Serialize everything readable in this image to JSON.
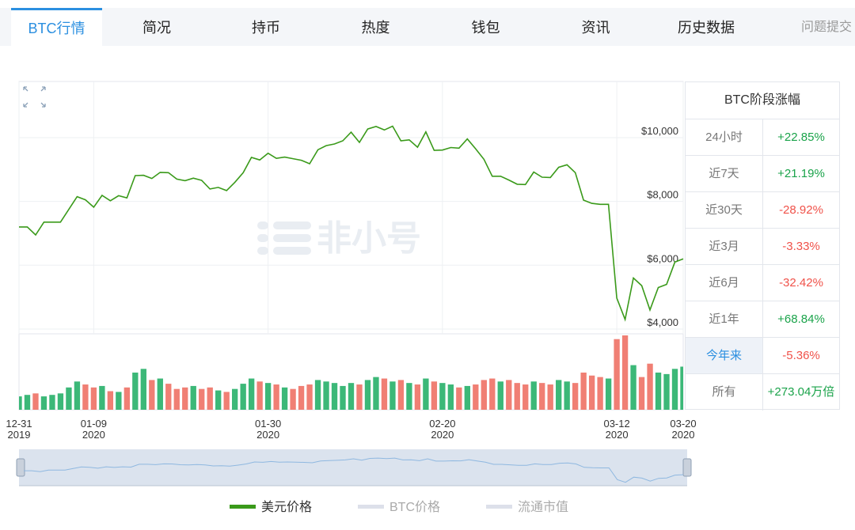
{
  "tabs": {
    "items": [
      "BTC行情",
      "简况",
      "持币",
      "热度",
      "钱包",
      "资讯",
      "历史数据"
    ],
    "active": 0,
    "feedback": "问题提交"
  },
  "chart_data": {
    "type": "line",
    "watermark": "非小号",
    "x": [
      "2019-12-31",
      "2020-01-01",
      "2020-01-02",
      "2020-01-03",
      "2020-01-04",
      "2020-01-05",
      "2020-01-06",
      "2020-01-07",
      "2020-01-08",
      "2020-01-09",
      "2020-01-10",
      "2020-01-11",
      "2020-01-12",
      "2020-01-13",
      "2020-01-14",
      "2020-01-15",
      "2020-01-16",
      "2020-01-17",
      "2020-01-18",
      "2020-01-19",
      "2020-01-20",
      "2020-01-21",
      "2020-01-22",
      "2020-01-23",
      "2020-01-24",
      "2020-01-25",
      "2020-01-26",
      "2020-01-27",
      "2020-01-28",
      "2020-01-29",
      "2020-01-30",
      "2020-01-31",
      "2020-02-01",
      "2020-02-02",
      "2020-02-03",
      "2020-02-04",
      "2020-02-05",
      "2020-02-06",
      "2020-02-07",
      "2020-02-08",
      "2020-02-09",
      "2020-02-10",
      "2020-02-11",
      "2020-02-12",
      "2020-02-13",
      "2020-02-14",
      "2020-02-15",
      "2020-02-16",
      "2020-02-17",
      "2020-02-18",
      "2020-02-19",
      "2020-02-20",
      "2020-02-21",
      "2020-02-22",
      "2020-02-23",
      "2020-02-24",
      "2020-02-25",
      "2020-02-26",
      "2020-02-27",
      "2020-02-28",
      "2020-02-29",
      "2020-03-01",
      "2020-03-02",
      "2020-03-03",
      "2020-03-04",
      "2020-03-05",
      "2020-03-06",
      "2020-03-07",
      "2020-03-08",
      "2020-03-09",
      "2020-03-10",
      "2020-03-11",
      "2020-03-12",
      "2020-03-13",
      "2020-03-14",
      "2020-03-15",
      "2020-03-16",
      "2020-03-17",
      "2020-03-18",
      "2020-03-19",
      "2020-03-20"
    ],
    "series": [
      {
        "name": "美元价格",
        "color": "#3a9a1a",
        "values": [
          7200,
          7200,
          6950,
          7350,
          7350,
          7350,
          7750,
          8150,
          8050,
          7820,
          8190,
          8020,
          8180,
          8110,
          8810,
          8820,
          8720,
          8910,
          8900,
          8700,
          8650,
          8730,
          8660,
          8390,
          8440,
          8340,
          8600,
          8900,
          9380,
          9300,
          9510,
          9350,
          9390,
          9340,
          9290,
          9180,
          9620,
          9750,
          9800,
          9900,
          10170,
          9850,
          10270,
          10350,
          10240,
          10360,
          9900,
          9930,
          9700,
          10180,
          9600,
          9610,
          9690,
          9670,
          9960,
          9650,
          9320,
          8790,
          8790,
          8670,
          8540,
          8530,
          8920,
          8760,
          8750,
          9070,
          9150,
          8900,
          8040,
          7940,
          7910,
          7910,
          4970,
          4300,
          5600,
          5360,
          4600,
          5300,
          5400,
          6100,
          6200
        ]
      }
    ],
    "inactive_series": [
      {
        "name": "BTC价格",
        "color": "#dde0ea"
      },
      {
        "name": "流通市值",
        "color": "#dde0ea"
      }
    ],
    "volume": [
      18,
      20,
      22,
      18,
      20,
      22,
      30,
      38,
      34,
      30,
      32,
      25,
      24,
      30,
      50,
      55,
      40,
      42,
      35,
      28,
      30,
      32,
      28,
      30,
      26,
      24,
      28,
      35,
      42,
      38,
      36,
      34,
      30,
      28,
      32,
      34,
      40,
      38,
      36,
      32,
      36,
      34,
      40,
      44,
      42,
      38,
      40,
      36,
      34,
      42,
      38,
      36,
      34,
      30,
      32,
      34,
      40,
      42,
      38,
      40,
      36,
      34,
      38,
      36,
      34,
      40,
      38,
      36,
      50,
      46,
      44,
      42,
      95,
      100,
      60,
      44,
      62,
      50,
      48,
      55,
      58
    ],
    "volume_ylim": [
      0,
      100
    ],
    "volume_up_color": "#3cb878",
    "volume_down_color": "#f07f74",
    "ylim": [
      3850,
      11760
    ],
    "yticks": [
      {
        "value": 4000,
        "label": "$4,000"
      },
      {
        "value": 6000,
        "label": "$6,000"
      },
      {
        "value": 8000,
        "label": "$8,000"
      },
      {
        "value": 10000,
        "label": "$10,000"
      }
    ],
    "xlim": [
      "2019-12-31",
      "2020-03-20"
    ],
    "xticks": [
      {
        "value": "2019-12-31",
        "label": "12-31\n2019"
      },
      {
        "value": "2020-01-09",
        "label": "01-09\n2020"
      },
      {
        "value": "2020-01-30",
        "label": "01-30\n2020"
      },
      {
        "value": "2020-02-20",
        "label": "02-20\n2020"
      },
      {
        "value": "2020-03-12",
        "label": "03-12\n2020"
      },
      {
        "value": "2020-03-20",
        "label": "03-20\n2020"
      }
    ],
    "grid": true,
    "navigator_color": "#8fb8e0"
  },
  "stats_table": {
    "title": "BTC阶段涨幅",
    "highlighted_row": 6,
    "rows": [
      [
        "24小时",
        "+22.85%"
      ],
      [
        "近7天",
        "+21.19%"
      ],
      [
        "近30天",
        "-28.92%"
      ],
      [
        "近3月",
        "-3.33%"
      ],
      [
        "近6月",
        "-32.42%"
      ],
      [
        "近1年",
        "+68.84%"
      ],
      [
        "今年来",
        "-5.36%"
      ],
      [
        "所有",
        "+273.04万倍"
      ]
    ]
  }
}
